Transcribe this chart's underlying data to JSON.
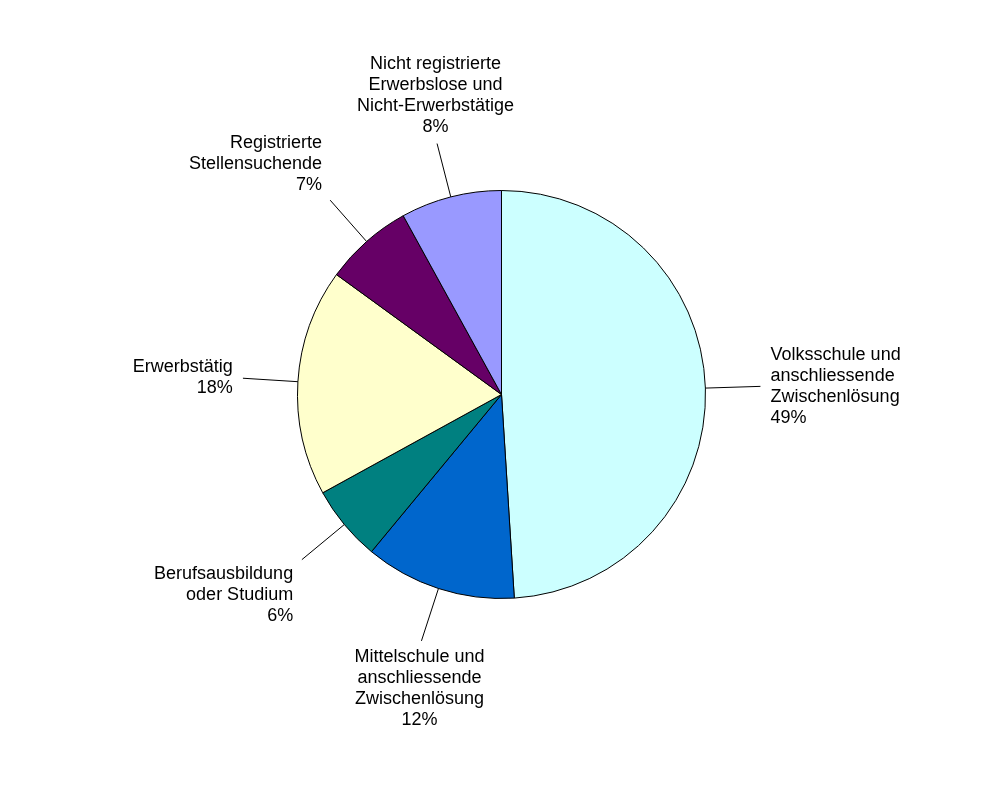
{
  "chart_data": {
    "type": "pie",
    "categories": [
      "Volksschule und\nanschliessende\nZwischenlösung",
      "Mittelschule und\nanschliessende\nZwischenlösung",
      "Berufsausbildung\noder Studium",
      "Erwerbstätig",
      "Registrierte\nStellensuchende",
      "Nicht registrierte\nErwerbslose und\nNicht-Erwerbstätige"
    ],
    "values": [
      49,
      12,
      6,
      18,
      7,
      8
    ],
    "colors": [
      "#ccffff",
      "#0066cc",
      "#008080",
      "#ffffcc",
      "#660066",
      "#9999ff"
    ],
    "value_labels": [
      "49%",
      "12%",
      "6%",
      "18%",
      "7%",
      "8%"
    ],
    "legend": false
  }
}
